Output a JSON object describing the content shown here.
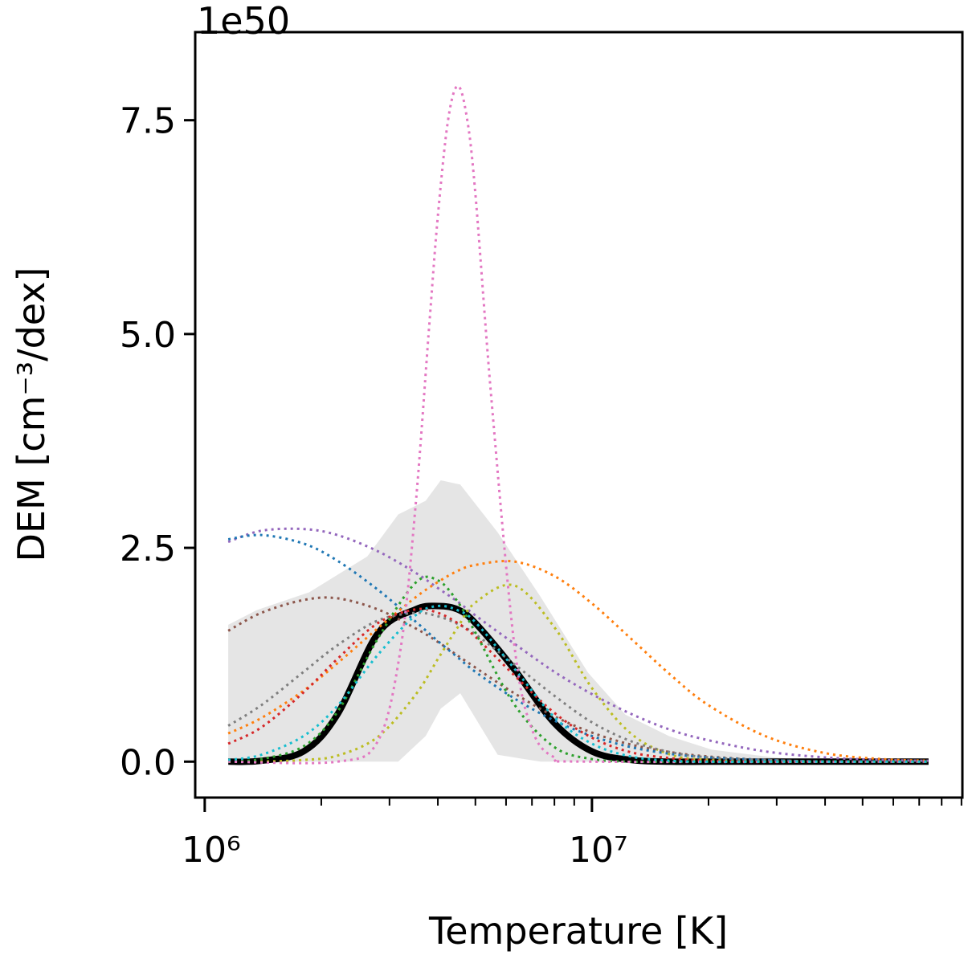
{
  "chart_data": {
    "type": "line",
    "xlabel": "Temperature [K]",
    "ylabel": "DEM [cm⁻³/dex]",
    "y_offset_text": "1e50",
    "xscale": "log",
    "xlim": [
      945000,
      90500000
    ],
    "ylim": [
      -0.42,
      8.53
    ],
    "grid": false,
    "x_ticks": [
      {
        "value": 1000000,
        "label": "10⁶"
      },
      {
        "value": 10000000,
        "label": "10⁷"
      }
    ],
    "y_ticks": [
      {
        "value": 0.0,
        "label": "0.0"
      },
      {
        "value": 2.5,
        "label": "2.5"
      },
      {
        "value": 5.0,
        "label": "5.0"
      },
      {
        "value": 7.5,
        "label": "7.5"
      }
    ],
    "band": {
      "color": "#e5e5e5",
      "x": [
        1150000,
        1360000,
        1860000,
        2630000,
        3160000,
        3720000,
        4070000,
        4570000,
        5710000,
        7360000,
        9770000,
        12200000,
        15800000,
        20400000,
        29500000,
        39800000
      ],
      "upper": [
        1.6,
        1.77,
        1.98,
        2.4,
        2.89,
        3.05,
        3.29,
        3.24,
        2.68,
        1.93,
        1.04,
        0.55,
        0.3,
        0.14,
        0.05,
        0.0
      ],
      "lower": [
        0,
        0,
        0,
        0,
        0,
        0.3,
        0.62,
        0.8,
        0.08,
        0,
        0,
        0,
        0,
        0,
        0,
        0
      ]
    },
    "x": [
      1150000,
      1400000,
      1800000,
      2200000,
      2800000,
      3500000,
      4000000,
      4500000,
      5000000,
      6300000,
      8000000,
      10000000,
      12600000,
      16000000,
      20000000,
      28000000,
      40000000,
      56000000,
      74000000
    ],
    "mean": {
      "color": "#000000",
      "values": [
        0,
        0.01,
        0.12,
        0.55,
        1.5,
        1.78,
        1.82,
        1.78,
        1.62,
        1.08,
        0.45,
        0.12,
        0.02,
        0,
        0,
        0,
        0,
        0,
        0
      ]
    },
    "series": [
      {
        "color": "#8c564b",
        "values": [
          1.53,
          1.74,
          1.89,
          1.91,
          1.78,
          1.56,
          1.4,
          1.24,
          1.1,
          0.8,
          0.53,
          0.34,
          0.2,
          0.11,
          0.06,
          0.02,
          0,
          0,
          0
        ]
      },
      {
        "color": "#9467bd",
        "values": [
          2.57,
          2.7,
          2.72,
          2.65,
          2.46,
          2.21,
          2.03,
          1.87,
          1.71,
          1.38,
          1.05,
          0.79,
          0.56,
          0.37,
          0.25,
          0.12,
          0.05,
          0.02,
          0.01
        ]
      },
      {
        "color": "#1f77b4",
        "values": [
          2.6,
          2.65,
          2.55,
          2.35,
          2.01,
          1.64,
          1.41,
          1.22,
          1.05,
          0.74,
          0.48,
          0.3,
          0.17,
          0.09,
          0.05,
          0.02,
          0,
          0,
          0
        ]
      },
      {
        "color": "#ff7f0e",
        "values": [
          0.33,
          0.51,
          0.83,
          1.15,
          1.56,
          1.92,
          2.1,
          2.23,
          2.3,
          2.34,
          2.17,
          1.85,
          1.44,
          1.01,
          0.66,
          0.3,
          0.1,
          0.03,
          0.01
        ]
      },
      {
        "color": "#bcbd22",
        "values": [
          0,
          0,
          0.02,
          0.07,
          0.29,
          0.78,
          1.2,
          1.57,
          1.86,
          2.06,
          1.57,
          0.86,
          0.33,
          0.08,
          0.02,
          0,
          0,
          0,
          0
        ]
      },
      {
        "color": "#7f7f7f",
        "values": [
          0.42,
          0.66,
          1.05,
          1.36,
          1.65,
          1.74,
          1.7,
          1.61,
          1.49,
          1.14,
          0.77,
          0.46,
          0.24,
          0.11,
          0.05,
          0.02,
          0,
          0,
          0
        ]
      },
      {
        "color": "#d62728",
        "values": [
          0.21,
          0.4,
          0.81,
          1.2,
          1.62,
          1.78,
          1.74,
          1.62,
          1.46,
          1.01,
          0.57,
          0.28,
          0.11,
          0.04,
          0.01,
          0,
          0,
          0,
          0
        ]
      },
      {
        "color": "#2ca02c",
        "values": [
          0,
          0.03,
          0.18,
          0.58,
          1.44,
          2.09,
          2.12,
          1.87,
          1.51,
          0.67,
          0.17,
          0.03,
          0,
          0,
          0,
          0,
          0,
          0,
          0
        ]
      },
      {
        "color": "#e377c2",
        "x": [
          1150000,
          2200000,
          2800000,
          3200000,
          3500000,
          3800000,
          4000000,
          4250000,
          4500000,
          4750000,
          5000000,
          5500000,
          6300000,
          7000000,
          8000000,
          10000000,
          74000000
        ],
        "values": [
          0,
          0,
          0.24,
          1.3,
          2.97,
          5.1,
          6.38,
          7.5,
          7.9,
          7.54,
          6.64,
          4.24,
          1.37,
          0.38,
          0.05,
          0,
          0
        ]
      },
      {
        "color": "#17becf",
        "values": [
          0.02,
          0.08,
          0.3,
          0.65,
          1.25,
          1.71,
          1.82,
          1.77,
          1.63,
          1.09,
          0.52,
          0.21,
          0.06,
          0.01,
          0,
          0,
          0,
          0,
          0
        ]
      }
    ]
  }
}
